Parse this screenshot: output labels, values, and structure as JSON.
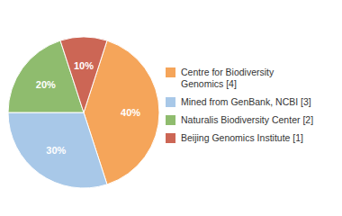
{
  "chart_data": {
    "type": "pie",
    "categories": [
      "Centre for Biodiversity\nGenomics [4]",
      "Mined from GenBank, NCBI [3]",
      "Naturalis Biodiversity Center [2]",
      "Beijing Genomics Institute [1]"
    ],
    "values": [
      40,
      30,
      20,
      10
    ],
    "value_labels": [
      "40%",
      "30%",
      "20%",
      "10%"
    ],
    "colors": [
      "#f5a55a",
      "#a8c8e8",
      "#8fbc6e",
      "#cc6655"
    ],
    "data_labels": true,
    "legend": "right"
  }
}
